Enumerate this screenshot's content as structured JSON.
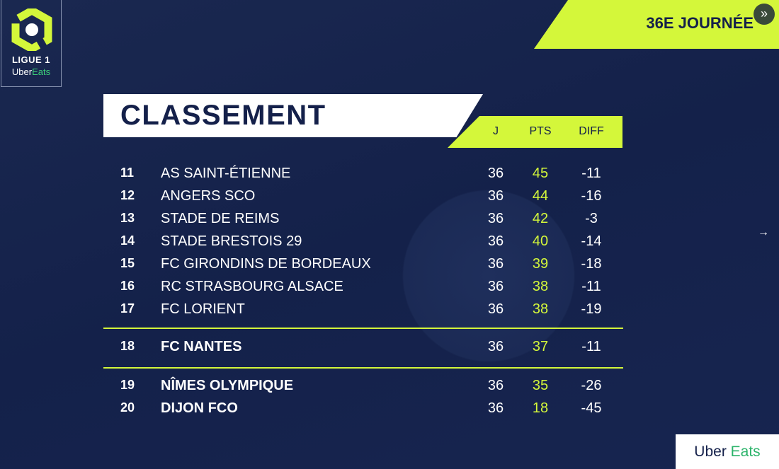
{
  "logo": {
    "line1": "LIGUE 1",
    "uber": "Uber",
    "eats": "Eats"
  },
  "header": {
    "matchday": "36E JOURNÉE",
    "title": "CLASSEMENT",
    "col_j": "J",
    "col_pts": "PTS",
    "col_diff": "DIFF"
  },
  "colors": {
    "accent": "#d4f73a",
    "background": "#15224a"
  },
  "rows": [
    {
      "rank": "11",
      "team": "AS SAINT-ÉTIENNE",
      "j": "36",
      "pts": "45",
      "diff": "-11"
    },
    {
      "rank": "12",
      "team": "ANGERS SCO",
      "j": "36",
      "pts": "44",
      "diff": "-16"
    },
    {
      "rank": "13",
      "team": "STADE DE REIMS",
      "j": "36",
      "pts": "42",
      "diff": "-3"
    },
    {
      "rank": "14",
      "team": "STADE BRESTOIS 29",
      "j": "36",
      "pts": "40",
      "diff": "-14"
    },
    {
      "rank": "15",
      "team": "FC GIRONDINS DE BORDEAUX",
      "j": "36",
      "pts": "39",
      "diff": "-18"
    },
    {
      "rank": "16",
      "team": "RC STRASBOURG ALSACE",
      "j": "36",
      "pts": "38",
      "diff": "-11"
    },
    {
      "rank": "17",
      "team": "FC LORIENT",
      "j": "36",
      "pts": "38",
      "diff": "-19"
    },
    {
      "rank": "18",
      "team": "FC NANTES",
      "j": "36",
      "pts": "37",
      "diff": "-11"
    },
    {
      "rank": "19",
      "team": "NÎMES OLYMPIQUE",
      "j": "36",
      "pts": "35",
      "diff": "-26"
    },
    {
      "rank": "20",
      "team": "DIJON FCO",
      "j": "36",
      "pts": "18",
      "diff": "-45"
    }
  ],
  "sponsor": {
    "uber": "Uber",
    "eats": " Eats"
  },
  "icons": {
    "skip": "double-chevron-right-icon",
    "next": "arrow-right-icon"
  }
}
